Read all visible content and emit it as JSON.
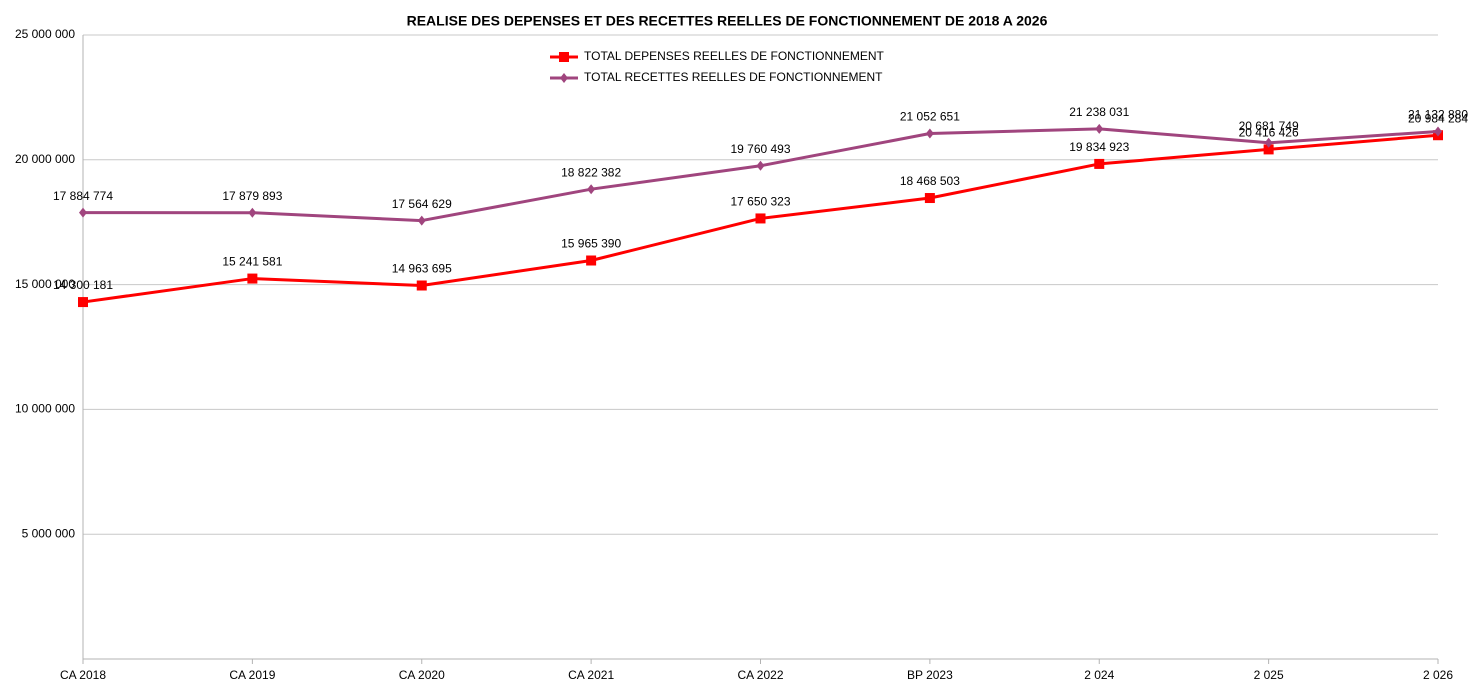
{
  "chart_data": {
    "type": "line",
    "title": "REALISE DES DEPENSES ET DES RECETTES REELLES DE FONCTIONNEMENT DE 2018 A 2026",
    "categories": [
      "CA 2018",
      "CA 2019",
      "CA 2020",
      "CA 2021",
      "CA 2022",
      "BP 2023",
      "2 024",
      "2 025",
      "2 026"
    ],
    "series": [
      {
        "name": "TOTAL DEPENSES REELLES DE FONCTIONNEMENT",
        "color": "#ff0000",
        "marker": "square",
        "values": [
          14300181,
          15241581,
          14963695,
          15965390,
          17650323,
          18468503,
          19834923,
          20416426,
          20984284
        ],
        "value_labels": [
          "14 300 181",
          "15 241 581",
          "14 963 695",
          "15 965 390",
          "17 650 323",
          "18 468 503",
          "19 834 923",
          "20 416 426",
          "20 984 284"
        ]
      },
      {
        "name": "TOTAL RECETTES REELLES DE FONCTIONNEMENT",
        "color": "#a0457e",
        "marker": "diamond",
        "values": [
          17884774,
          17879893,
          17564629,
          18822382,
          19760493,
          21052651,
          21238031,
          20681749,
          21132880
        ],
        "value_labels": [
          "17 884 774",
          "17 879 893",
          "17 564 629",
          "18 822 382",
          "19 760 493",
          "21 052 651",
          "21 238 031",
          "20 681 749",
          "21 132 880"
        ]
      }
    ],
    "ylim": [
      0,
      25000000
    ],
    "yticks": [
      {
        "value": 5000000,
        "label": "5 000 000"
      },
      {
        "value": 10000000,
        "label": "10 000 000"
      },
      {
        "value": 15000000,
        "label": "15 000 000"
      },
      {
        "value": 20000000,
        "label": "20 000 000"
      },
      {
        "value": 25000000,
        "label": "25 000 000"
      }
    ],
    "grid": true,
    "legend": "top"
  }
}
